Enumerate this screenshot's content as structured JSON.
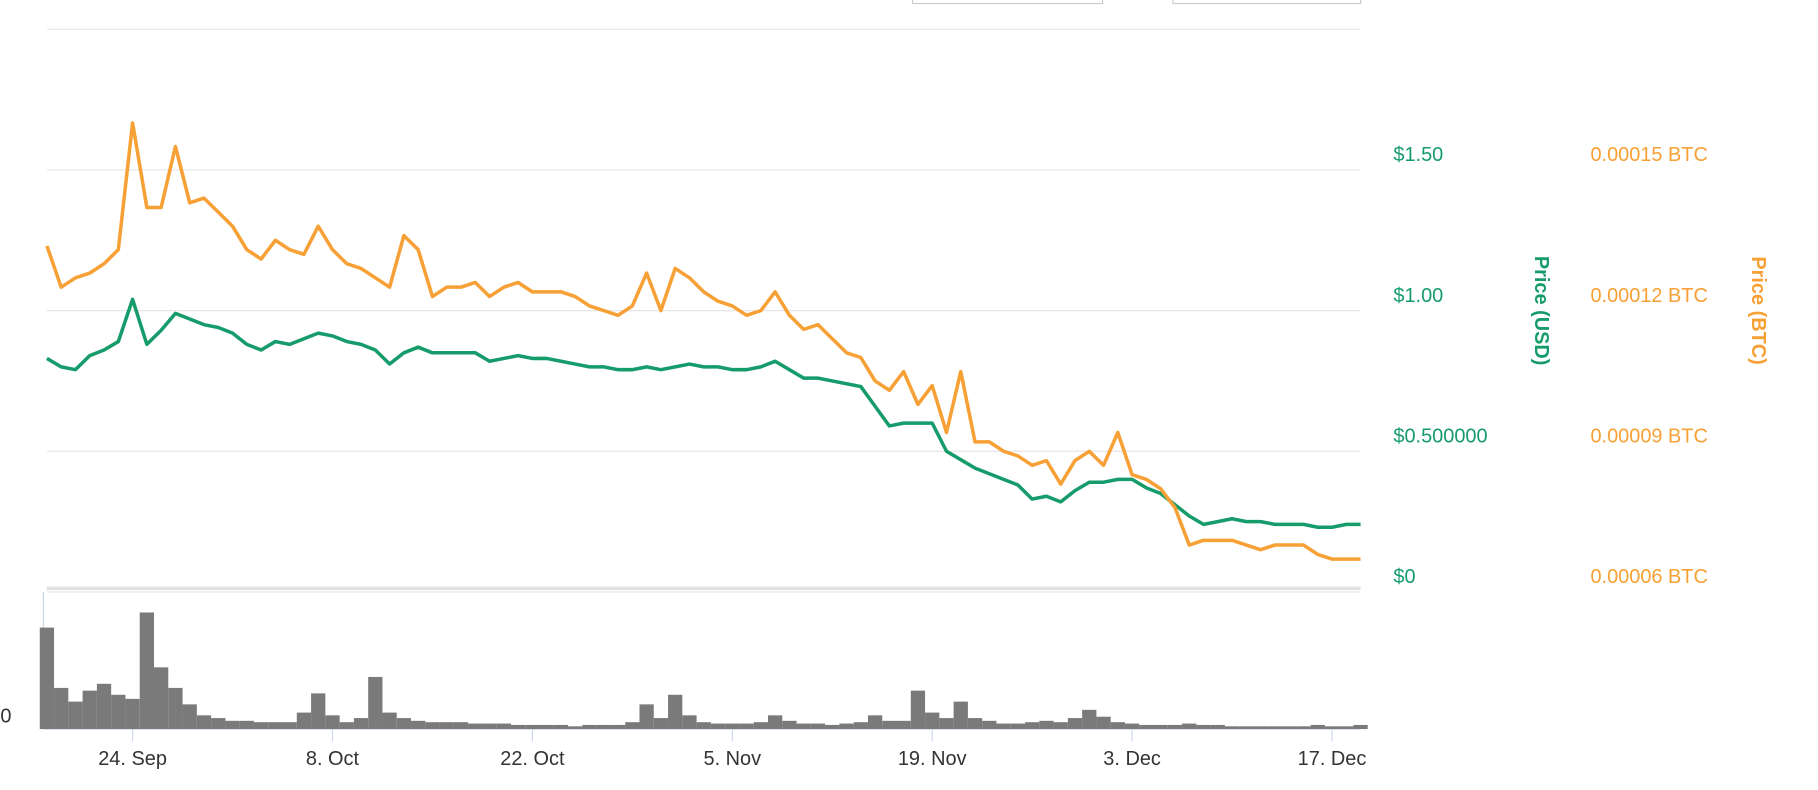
{
  "chart_data": {
    "type": "line",
    "y_label": "Price (USD)",
    "y2_label": "Price (BTC)",
    "categories": [
      null,
      null,
      null,
      null,
      null,
      null,
      "24. Sep",
      null,
      null,
      null,
      null,
      null,
      null,
      null,
      null,
      null,
      null,
      null,
      null,
      null,
      "8. Oct",
      null,
      null,
      null,
      null,
      null,
      null,
      null,
      null,
      null,
      null,
      null,
      null,
      null,
      "22. Oct",
      null,
      null,
      null,
      null,
      null,
      null,
      null,
      null,
      null,
      null,
      null,
      null,
      null,
      "5. Nov",
      null,
      null,
      null,
      null,
      null,
      null,
      null,
      null,
      null,
      null,
      null,
      null,
      null,
      "19. Nov",
      null,
      null,
      null,
      null,
      null,
      null,
      null,
      null,
      null,
      null,
      null,
      null,
      null,
      "3. Dec",
      null,
      null,
      null,
      null,
      null,
      null,
      null,
      null,
      null,
      null,
      null,
      null,
      null,
      "17. Dec",
      null,
      null
    ],
    "ylim": [
      0,
      2
    ],
    "yticks": [
      {
        "value": 0,
        "label": "$0"
      },
      {
        "value": 0.5,
        "label": "$0.500000"
      },
      {
        "value": 1,
        "label": "$1.00"
      },
      {
        "value": 1.5,
        "label": "$1.50"
      }
    ],
    "y2lim": [
      6e-05,
      0.00018
    ],
    "y2ticks": [
      {
        "value": 6e-05,
        "label": "0.00006 BTC"
      },
      {
        "value": 9e-05,
        "label": "0.00009 BTC"
      },
      {
        "value": 0.00012,
        "label": "0.00012 BTC"
      },
      {
        "value": 0.00015,
        "label": "0.00015 BTC"
      }
    ],
    "volume_ylim": [
      0,
      100
    ],
    "volume_yticks": [
      0
    ],
    "grid": true,
    "series": [
      {
        "color": "#169b6b",
        "axis": "y",
        "values": [
          0.83,
          0.8,
          0.79,
          0.84,
          0.86,
          0.89,
          1.04,
          0.88,
          0.93,
          0.99,
          0.97,
          0.95,
          0.94,
          0.92,
          0.88,
          0.86,
          0.89,
          0.88,
          0.9,
          0.92,
          0.91,
          0.89,
          0.88,
          0.86,
          0.81,
          0.85,
          0.87,
          0.85,
          0.85,
          0.85,
          0.85,
          0.82,
          0.83,
          0.84,
          0.83,
          0.83,
          0.82,
          0.81,
          0.8,
          0.8,
          0.79,
          0.79,
          0.8,
          0.79,
          0.8,
          0.81,
          0.8,
          0.8,
          0.79,
          0.79,
          0.8,
          0.82,
          0.79,
          0.76,
          0.76,
          0.75,
          0.74,
          0.73,
          0.66,
          0.59,
          0.6,
          0.6,
          0.6,
          0.5,
          0.47,
          0.44,
          0.42,
          0.4,
          0.38,
          0.33,
          0.34,
          0.32,
          0.36,
          0.39,
          0.39,
          0.4,
          0.4,
          0.37,
          0.35,
          0.31,
          0.27,
          0.24,
          0.25,
          0.26,
          0.25,
          0.25,
          0.24,
          0.24,
          0.24,
          0.23,
          0.23,
          0.24,
          0.24
        ]
      },
      {
        "color": "#f7a035",
        "axis": "y2",
        "values": [
          0.0001338,
          0.000125,
          0.000127,
          0.000128,
          0.00013,
          0.000133,
          0.00016,
          0.000142,
          0.000142,
          0.000155,
          0.000143,
          0.000144,
          0.000141,
          0.000138,
          0.000133,
          0.000131,
          0.000135,
          0.000133,
          0.000132,
          0.000138,
          0.000133,
          0.00013,
          0.000129,
          0.000127,
          0.000125,
          0.000136,
          0.000133,
          0.000123,
          0.000125,
          0.000125,
          0.000126,
          0.000123,
          0.000125,
          0.000126,
          0.000124,
          0.000124,
          0.000124,
          0.000123,
          0.000121,
          0.00012,
          0.000119,
          0.000121,
          0.000128,
          0.00012,
          0.000129,
          0.000127,
          0.000124,
          0.000122,
          0.000121,
          0.000119,
          0.00012,
          0.000124,
          0.000119,
          0.000116,
          0.000117,
          0.000114,
          0.000111,
          0.00011,
          0.000105,
          0.000103,
          0.000107,
          0.0001,
          0.000104,
          9.4e-05,
          0.000107,
          9.2e-05,
          9.2e-05,
          9e-05,
          8.9e-05,
          8.7e-05,
          8.8e-05,
          8.3e-05,
          8.8e-05,
          9e-05,
          8.7e-05,
          9.4e-05,
          8.5e-05,
          8.4e-05,
          8.2e-05,
          7.8e-05,
          7e-05,
          7.1e-05,
          7.1e-05,
          7.1e-05,
          7e-05,
          6.9e-05,
          7e-05,
          7e-05,
          7e-05,
          6.8e-05,
          6.7e-05,
          6.7e-05,
          6.7e-05
        ]
      },
      {
        "color": "#7a7a7a",
        "axis": "volume",
        "values": [
          74,
          30,
          20,
          28,
          33,
          25,
          22,
          85,
          45,
          30,
          18,
          10,
          8,
          6,
          6,
          5,
          5,
          5,
          12,
          26,
          10,
          5,
          8,
          38,
          12,
          8,
          6,
          5,
          5,
          5,
          4,
          4,
          4,
          3,
          3,
          3,
          3,
          2,
          3,
          3,
          3,
          5,
          18,
          8,
          25,
          10,
          5,
          4,
          4,
          4,
          5,
          10,
          6,
          4,
          4,
          3,
          4,
          5,
          10,
          6,
          6,
          28,
          12,
          8,
          20,
          8,
          6,
          4,
          4,
          5,
          6,
          5,
          8,
          14,
          9,
          5,
          4,
          3,
          3,
          3,
          4,
          3,
          3,
          2,
          2,
          2,
          2,
          2,
          2,
          3,
          2,
          2,
          3
        ]
      }
    ]
  }
}
